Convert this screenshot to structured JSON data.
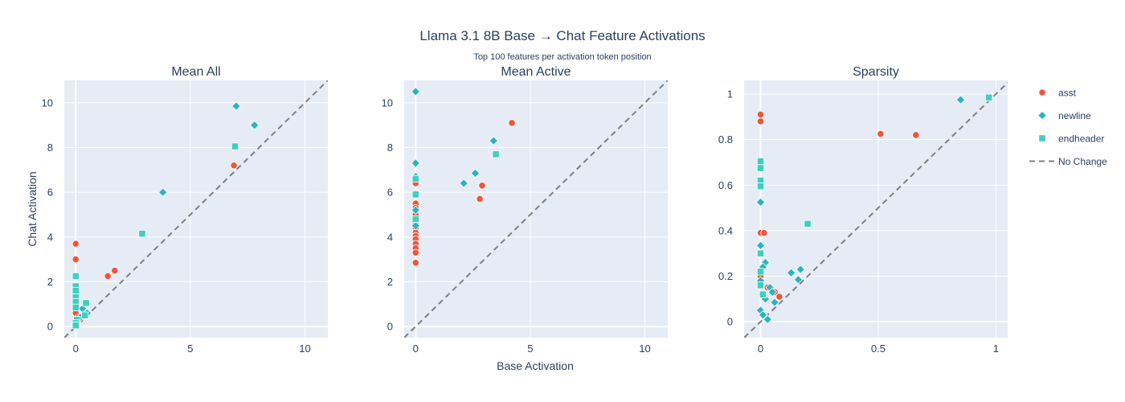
{
  "title": "Llama 3.1 8B Base → Chat Feature Activations",
  "subtitle": "Top 100 features per activation token position",
  "xlabel": "Base Activation",
  "ylabel": "Chat Activation",
  "colors": {
    "plot_bg": "#e5ecf6",
    "grid": "#ffffff",
    "asst": "#ef553b",
    "newline": "#2bb3c0",
    "endheader": "#3fcfbf",
    "no_change": "#7f7f7f"
  },
  "legend": [
    {
      "key": "asst",
      "label": "asst",
      "symbol": "circle"
    },
    {
      "key": "newline",
      "label": "newline",
      "symbol": "diamond"
    },
    {
      "key": "endheader",
      "label": "endheader",
      "symbol": "square"
    },
    {
      "key": "no_change",
      "label": "No Change",
      "symbol": "dash"
    }
  ],
  "chart_data": [
    {
      "type": "scatter",
      "title": "Mean All",
      "xlim": [
        -0.5,
        11
      ],
      "ylim": [
        -0.5,
        11
      ],
      "xticks": [
        0,
        5,
        10
      ],
      "xtick_labels": [
        "0",
        "5",
        "10"
      ],
      "yticks": [
        0,
        2,
        4,
        6,
        8,
        10
      ],
      "ytick_labels": [
        "0",
        "2",
        "4",
        "6",
        "8",
        "10"
      ],
      "reference_line": "y = x (No Change)",
      "series": [
        {
          "name": "asst",
          "x": [
            0,
            0,
            0,
            0,
            0,
            1.4,
            1.7,
            6.9,
            0.1,
            0.2
          ],
          "y": [
            3.7,
            3.0,
            1.5,
            1.0,
            0.6,
            2.25,
            2.5,
            7.2,
            0.4,
            0.3
          ]
        },
        {
          "name": "newline",
          "x": [
            7.0,
            7.8,
            3.8,
            0.3,
            0.5,
            0.35,
            0.1,
            0,
            0.05,
            0.2
          ],
          "y": [
            9.85,
            9.0,
            6.0,
            0.8,
            0.6,
            0.5,
            0.3,
            0.1,
            0.2,
            0.4
          ]
        },
        {
          "name": "endheader",
          "x": [
            6.95,
            2.9,
            0,
            0,
            0,
            0,
            0,
            0,
            0.45,
            0.4,
            0.05,
            0,
            0
          ],
          "y": [
            8.05,
            4.15,
            2.25,
            1.8,
            1.6,
            1.3,
            1.1,
            0.85,
            1.05,
            0.5,
            0.3,
            0.15,
            0.05
          ]
        }
      ]
    },
    {
      "type": "scatter",
      "title": "Mean Active",
      "xlim": [
        -0.5,
        11
      ],
      "ylim": [
        -0.5,
        11
      ],
      "xticks": [
        0,
        5,
        10
      ],
      "xtick_labels": [
        "0",
        "5",
        "10"
      ],
      "yticks": [
        0,
        2,
        4,
        6,
        8,
        10
      ],
      "ytick_labels": [
        "0",
        "2",
        "4",
        "6",
        "8",
        "10"
      ],
      "reference_line": "y = x (No Change)",
      "series": [
        {
          "name": "asst",
          "x": [
            4.2,
            2.9,
            2.8,
            0,
            0,
            0,
            0,
            0,
            0,
            0,
            0,
            0,
            0,
            0,
            0,
            0,
            0,
            0
          ],
          "y": [
            9.1,
            6.3,
            5.7,
            6.4,
            5.95,
            5.5,
            5.3,
            5.0,
            4.8,
            4.6,
            4.4,
            4.2,
            4.05,
            3.9,
            3.7,
            3.5,
            3.3,
            2.85
          ]
        },
        {
          "name": "newline",
          "x": [
            0,
            3.4,
            2.6,
            2.1,
            0,
            0,
            0,
            0
          ],
          "y": [
            10.5,
            8.3,
            6.85,
            6.4,
            7.3,
            6.7,
            5.2,
            4.5
          ]
        },
        {
          "name": "endheader",
          "x": [
            3.5,
            0,
            0,
            0
          ],
          "y": [
            7.7,
            6.6,
            5.9,
            4.8
          ]
        }
      ]
    },
    {
      "type": "scatter",
      "title": "Sparsity",
      "xlim": [
        -0.07,
        1.05
      ],
      "ylim": [
        -0.07,
        1.06
      ],
      "xticks": [
        0,
        0.5,
        1
      ],
      "xtick_labels": [
        "0",
        "0.5",
        "1"
      ],
      "yticks": [
        0,
        0.2,
        0.4,
        0.6,
        0.8,
        1
      ],
      "ytick_labels": [
        "0",
        "0.2",
        "0.4",
        "0.6",
        "0.8",
        "1"
      ],
      "reference_line": "y = x (No Change)",
      "series": [
        {
          "name": "asst",
          "x": [
            0,
            0,
            0.51,
            0.66,
            0,
            0.015,
            0.06,
            0.08,
            0.03,
            0.0
          ],
          "y": [
            0.91,
            0.88,
            0.825,
            0.82,
            0.39,
            0.39,
            0.13,
            0.11,
            0.15,
            0.2
          ]
        },
        {
          "name": "newline",
          "x": [
            0.85,
            0,
            0,
            0.02,
            0.01,
            0.13,
            0.17,
            0.16,
            0.04,
            0.05,
            0,
            0.02,
            0.06,
            0,
            0.01,
            0.03
          ],
          "y": [
            0.975,
            0.525,
            0.335,
            0.26,
            0.24,
            0.215,
            0.23,
            0.185,
            0.15,
            0.13,
            0.18,
            0.1,
            0.085,
            0.05,
            0.03,
            0.01
          ]
        },
        {
          "name": "endheader",
          "x": [
            0.97,
            0,
            0,
            0,
            0,
            0.2,
            0,
            0,
            0,
            0.01
          ],
          "y": [
            0.985,
            0.705,
            0.675,
            0.62,
            0.595,
            0.43,
            0.3,
            0.22,
            0.16,
            0.12
          ]
        }
      ]
    }
  ]
}
